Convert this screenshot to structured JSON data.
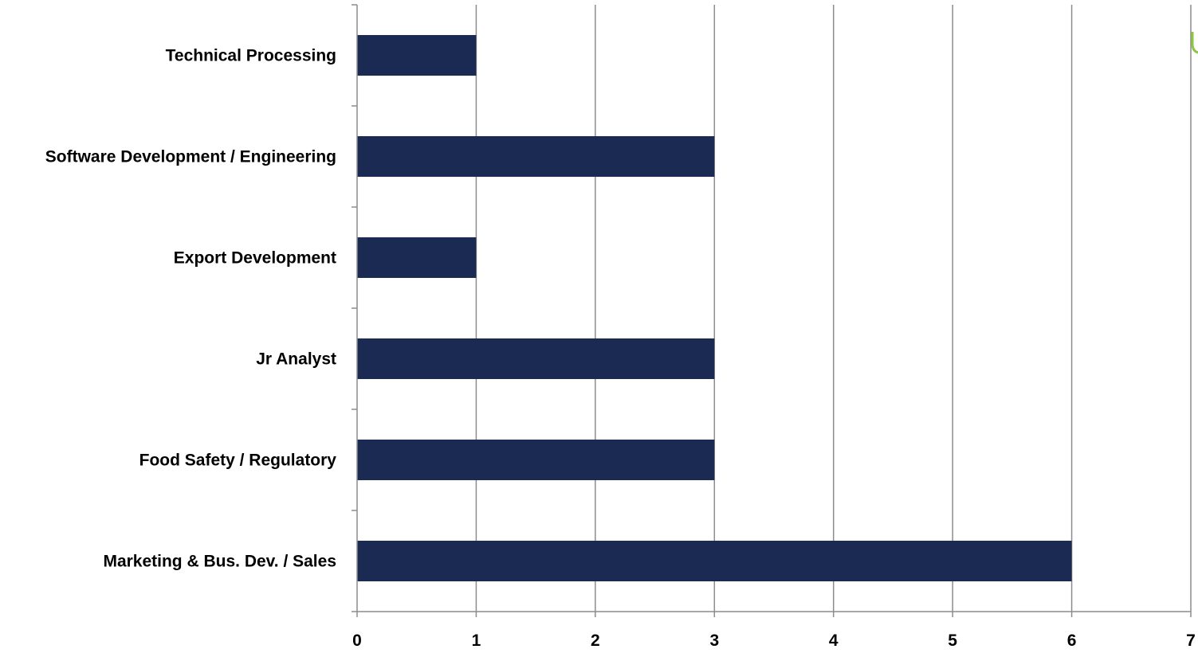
{
  "chart_data": {
    "type": "bar",
    "orientation": "horizontal",
    "categories": [
      "Technical Processing",
      "Software Development / Engineering",
      "Export Development",
      "Jr Analyst",
      "Food Safety / Regulatory",
      "Marketing & Bus. Dev. / Sales"
    ],
    "values": [
      1,
      3,
      1,
      3,
      3,
      6
    ],
    "title": "",
    "xlabel": "",
    "ylabel": "",
    "xlim": [
      0,
      7
    ],
    "x_ticks": [
      "0",
      "1",
      "2",
      "3",
      "4",
      "5",
      "6",
      "7"
    ],
    "grid": "vertical",
    "legend": "none",
    "bar_color": "#1b2a52",
    "grid_color": "#8c8c8c",
    "accent_color": "#8dc63f"
  }
}
